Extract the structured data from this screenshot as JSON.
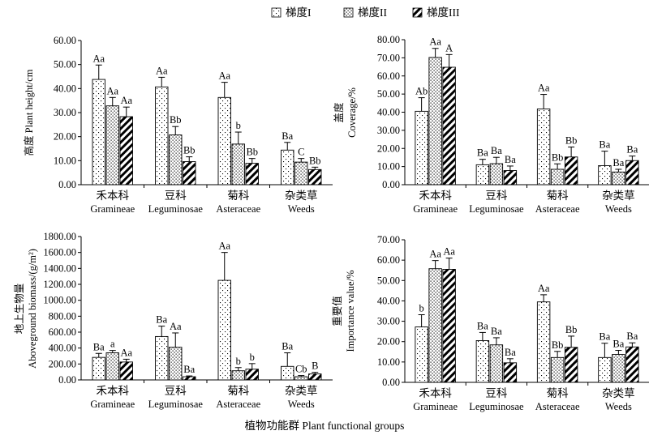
{
  "legend": {
    "items": [
      {
        "label": "梯度I",
        "pattern": "dots-sparse"
      },
      {
        "label": "梯度II",
        "pattern": "dots-dense"
      },
      {
        "label": "梯度III",
        "pattern": "diagonal-stripes"
      }
    ]
  },
  "x_title": "植物功能群 Plant functional groups",
  "colors": {
    "axis": "#000000",
    "bar_fill": "#ffffff",
    "stripe": "#000000"
  },
  "chart_data": [
    {
      "type": "bar",
      "ylabel_lines": [
        "高度 Plant height/cm"
      ],
      "ylim": [
        0,
        60
      ],
      "yticks": [
        "0.00",
        "10.00",
        "20.00",
        "30.00",
        "40.00",
        "50.00",
        "60.00"
      ],
      "tick_values": [
        0,
        10,
        20,
        30,
        40,
        50,
        60
      ],
      "categories_cn": [
        "禾本科",
        "豆科",
        "菊科",
        "杂类草"
      ],
      "categories_en": [
        "Gramineae",
        "Leguminosae",
        "Asteraceae",
        "Weeds"
      ],
      "series": [
        {
          "name": "梯度I",
          "values": [
            43.8,
            40.7,
            36.3,
            14.4
          ],
          "errors": [
            6.0,
            4.0,
            6.3,
            3.2
          ],
          "labels": [
            "Aa",
            "Aa",
            "Aa",
            "Ba"
          ]
        },
        {
          "name": "梯度II",
          "values": [
            32.8,
            20.7,
            16.9,
            9.4
          ],
          "errors": [
            3.5,
            3.5,
            5.0,
            1.5
          ],
          "labels": [
            "Aa",
            "Bb",
            "b",
            "C"
          ]
        },
        {
          "name": "梯度III",
          "values": [
            28.3,
            9.6,
            8.9,
            6.3
          ],
          "errors": [
            4.0,
            2.0,
            2.0,
            1.0
          ],
          "labels": [
            "Aa",
            "Bb",
            "Bb",
            "Bb"
          ]
        }
      ]
    },
    {
      "type": "bar",
      "ylabel_lines": [
        "盖度",
        "Coverage/%"
      ],
      "ylim": [
        0,
        80
      ],
      "yticks": [
        "0.00",
        "10.00",
        "20.00",
        "30.00",
        "40.00",
        "50.00",
        "60.00",
        "70.00",
        "80.00"
      ],
      "tick_values": [
        0,
        10,
        20,
        30,
        40,
        50,
        60,
        70,
        80
      ],
      "categories_cn": [
        "禾本科",
        "豆科",
        "菊科",
        "杂类草"
      ],
      "categories_en": [
        "Gramineae",
        "Leguminosae",
        "Asteraceae",
        "Weeds"
      ],
      "series": [
        {
          "name": "梯度I",
          "values": [
            40.5,
            11.0,
            41.8,
            10.5
          ],
          "errors": [
            7.5,
            3.0,
            8.0,
            8.0
          ],
          "labels": [
            "Ab",
            "Ba",
            "Aa",
            "Ba"
          ]
        },
        {
          "name": "梯度II",
          "values": [
            70.2,
            11.6,
            8.5,
            7.0
          ],
          "errors": [
            5.0,
            3.5,
            3.0,
            1.5
          ],
          "labels": [
            "Aa",
            "Ba",
            "Bb",
            "Ba"
          ]
        },
        {
          "name": "梯度III",
          "values": [
            64.8,
            7.8,
            15.3,
            13.3
          ],
          "errors": [
            7.0,
            2.5,
            5.5,
            2.5
          ],
          "labels": [
            "A",
            "Ba",
            "Bb",
            "Ba"
          ]
        }
      ]
    },
    {
      "type": "bar",
      "ylabel_lines": [
        "地上生物量",
        "Aboveground biomass/(g/m²)"
      ],
      "ylim": [
        0,
        1800
      ],
      "yticks": [
        "0.00",
        "200.00",
        "400.00",
        "600.00",
        "800.00",
        "1000.00",
        "1200.00",
        "1400.00",
        "1600.00",
        "1800.00"
      ],
      "tick_values": [
        0,
        200,
        400,
        600,
        800,
        1000,
        1200,
        1400,
        1600,
        1800
      ],
      "categories_cn": [
        "禾本科",
        "豆科",
        "菊科",
        "杂类草"
      ],
      "categories_en": [
        "Gramineae",
        "Leguminosae",
        "Asteraceae",
        "Weeds"
      ],
      "series": [
        {
          "name": "梯度I",
          "values": [
            283,
            545,
            1250,
            170
          ],
          "errors": [
            50,
            130,
            350,
            170
          ],
          "labels": [
            "Ba",
            "Ba",
            "Aa",
            "Ba"
          ]
        },
        {
          "name": "梯度II",
          "values": [
            340,
            410,
            115,
            40
          ],
          "errors": [
            30,
            180,
            40,
            15
          ],
          "labels": [
            "a",
            "Aa",
            "b",
            "Cb"
          ]
        },
        {
          "name": "梯度III",
          "values": [
            225,
            40,
            135,
            75
          ],
          "errors": [
            35,
            10,
            70,
            20
          ],
          "labels": [
            "Aa",
            "Ba",
            "b",
            "B"
          ]
        }
      ]
    },
    {
      "type": "bar",
      "ylabel_lines": [
        "重要值",
        "Importance value/%"
      ],
      "ylim": [
        0,
        70
      ],
      "yticks": [
        "0.00",
        "10.00",
        "20.00",
        "30.00",
        "40.00",
        "50.00",
        "60.00",
        "70.00"
      ],
      "tick_values": [
        0,
        10,
        20,
        30,
        40,
        50,
        60,
        70
      ],
      "categories_cn": [
        "禾本科",
        "豆科",
        "菊科",
        "杂类草"
      ],
      "categories_en": [
        "Gramineae",
        "Leguminosae",
        "Asteraceae",
        "Weeds"
      ],
      "series": [
        {
          "name": "梯度I",
          "values": [
            27.2,
            20.5,
            39.5,
            12.2
          ],
          "errors": [
            6.0,
            4.0,
            3.5,
            7.0
          ],
          "labels": [
            "b",
            "Ba",
            "Aa",
            "Ba"
          ]
        },
        {
          "name": "梯度II",
          "values": [
            55.8,
            18.4,
            12.2,
            13.7
          ],
          "errors": [
            4.0,
            3.5,
            3.0,
            2.0
          ],
          "labels": [
            "Aa",
            "Ba",
            "Bb",
            "Ba"
          ]
        },
        {
          "name": "梯度III",
          "values": [
            55.5,
            9.6,
            17.2,
            17.4
          ],
          "errors": [
            5.5,
            2.0,
            5.5,
            2.0
          ],
          "labels": [
            "Aa",
            "Ba",
            "Bb",
            "Ba"
          ]
        }
      ]
    }
  ]
}
